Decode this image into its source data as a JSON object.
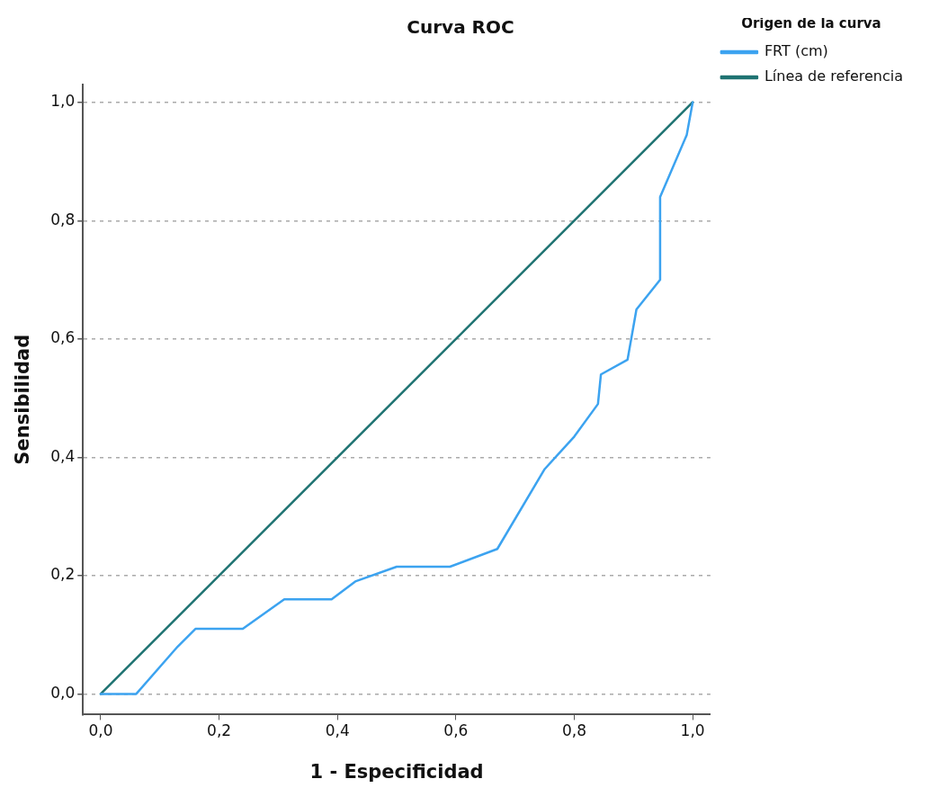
{
  "chart_data": {
    "type": "line",
    "title": "Curva ROC",
    "xlabel": "1 - Especificidad",
    "ylabel": "Sensibilidad",
    "legend_title": "Origen de la curva",
    "legend": "right",
    "grid": "y",
    "marker": "none",
    "line_style": "solid",
    "xlim": [
      -0.03,
      1.03
    ],
    "ylim": [
      -0.035,
      1.03
    ],
    "xticks": [
      {
        "value": 0,
        "label": "0,0"
      },
      {
        "value": 0.2,
        "label": "0,2"
      },
      {
        "value": 0.4,
        "label": "0,4"
      },
      {
        "value": 0.6,
        "label": "0,6"
      },
      {
        "value": 0.8,
        "label": "0,8"
      },
      {
        "value": 1,
        "label": "1,0"
      }
    ],
    "yticks": [
      {
        "value": 0,
        "label": "0,0"
      },
      {
        "value": 0.2,
        "label": "0,2"
      },
      {
        "value": 0.4,
        "label": "0,4"
      },
      {
        "value": 0.6,
        "label": "0,6"
      },
      {
        "value": 0.8,
        "label": "0,8"
      },
      {
        "value": 1,
        "label": "1,0"
      }
    ],
    "series": [
      {
        "name": "FRT (cm)",
        "color": "#3ca3f0",
        "x": [
          0,
          0.06,
          0.13,
          0.16,
          0.24,
          0.31,
          0.39,
          0.43,
          0.5,
          0.59,
          0.67,
          0.75,
          0.8,
          0.84,
          0.845,
          0.89,
          0.905,
          0.945,
          0.945,
          0.99,
          1
        ],
        "values": [
          0,
          0,
          0.08,
          0.11,
          0.11,
          0.16,
          0.16,
          0.19,
          0.215,
          0.215,
          0.245,
          0.38,
          0.435,
          0.49,
          0.54,
          0.565,
          0.65,
          0.7,
          0.84,
          0.945,
          1
        ]
      },
      {
        "name": "Línea de referencia",
        "color": "#1f7372",
        "x": [
          0,
          1
        ],
        "values": [
          0,
          1
        ]
      }
    ]
  }
}
